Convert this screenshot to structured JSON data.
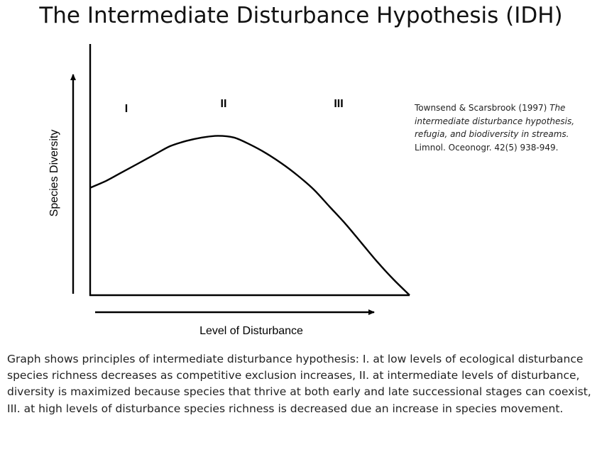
{
  "title": "The Intermediate Disturbance Hypothesis (IDH)",
  "chart_data": {
    "type": "line",
    "title": "",
    "xlabel": "Level of Disturbance",
    "ylabel": "Species Diversity",
    "grid": false,
    "legend": "none",
    "region_labels": [
      "I",
      "II",
      "III"
    ],
    "series": [
      {
        "x": [
          0,
          0.05,
          0.1,
          0.15,
          0.2,
          0.25,
          0.3,
          0.35,
          0.4,
          0.45,
          0.5,
          0.55,
          0.6,
          0.65,
          0.7,
          0.75,
          0.8,
          0.85,
          0.9,
          0.95,
          1.0
        ],
        "values": [
          0.62,
          0.66,
          0.71,
          0.76,
          0.81,
          0.86,
          0.89,
          0.91,
          0.92,
          0.91,
          0.87,
          0.82,
          0.76,
          0.69,
          0.61,
          0.51,
          0.41,
          0.3,
          0.19,
          0.09,
          0.0
        ]
      }
    ],
    "xlim": [
      0,
      1
    ],
    "ylim": [
      0,
      1.45
    ]
  },
  "citation": {
    "authors_year": "Townsend & Scarsbrook (1997) ",
    "article_title": "The intermediate disturbance hypothesis, refugia, and biodiversity in streams.",
    "journal": " Limnol. Oceonogr. 42(5) 938-949."
  },
  "caption": "Graph shows principles of intermediate disturbance hypothesis: I. at low levels of ecological disturbance species richness decreases as competitive exclusion increases, II. at intermediate levels of disturbance, diversity is maximized because species that thrive at both early and late successional stages can coexist, III. at high levels of disturbance species richness is decreased due an increase in species movement."
}
